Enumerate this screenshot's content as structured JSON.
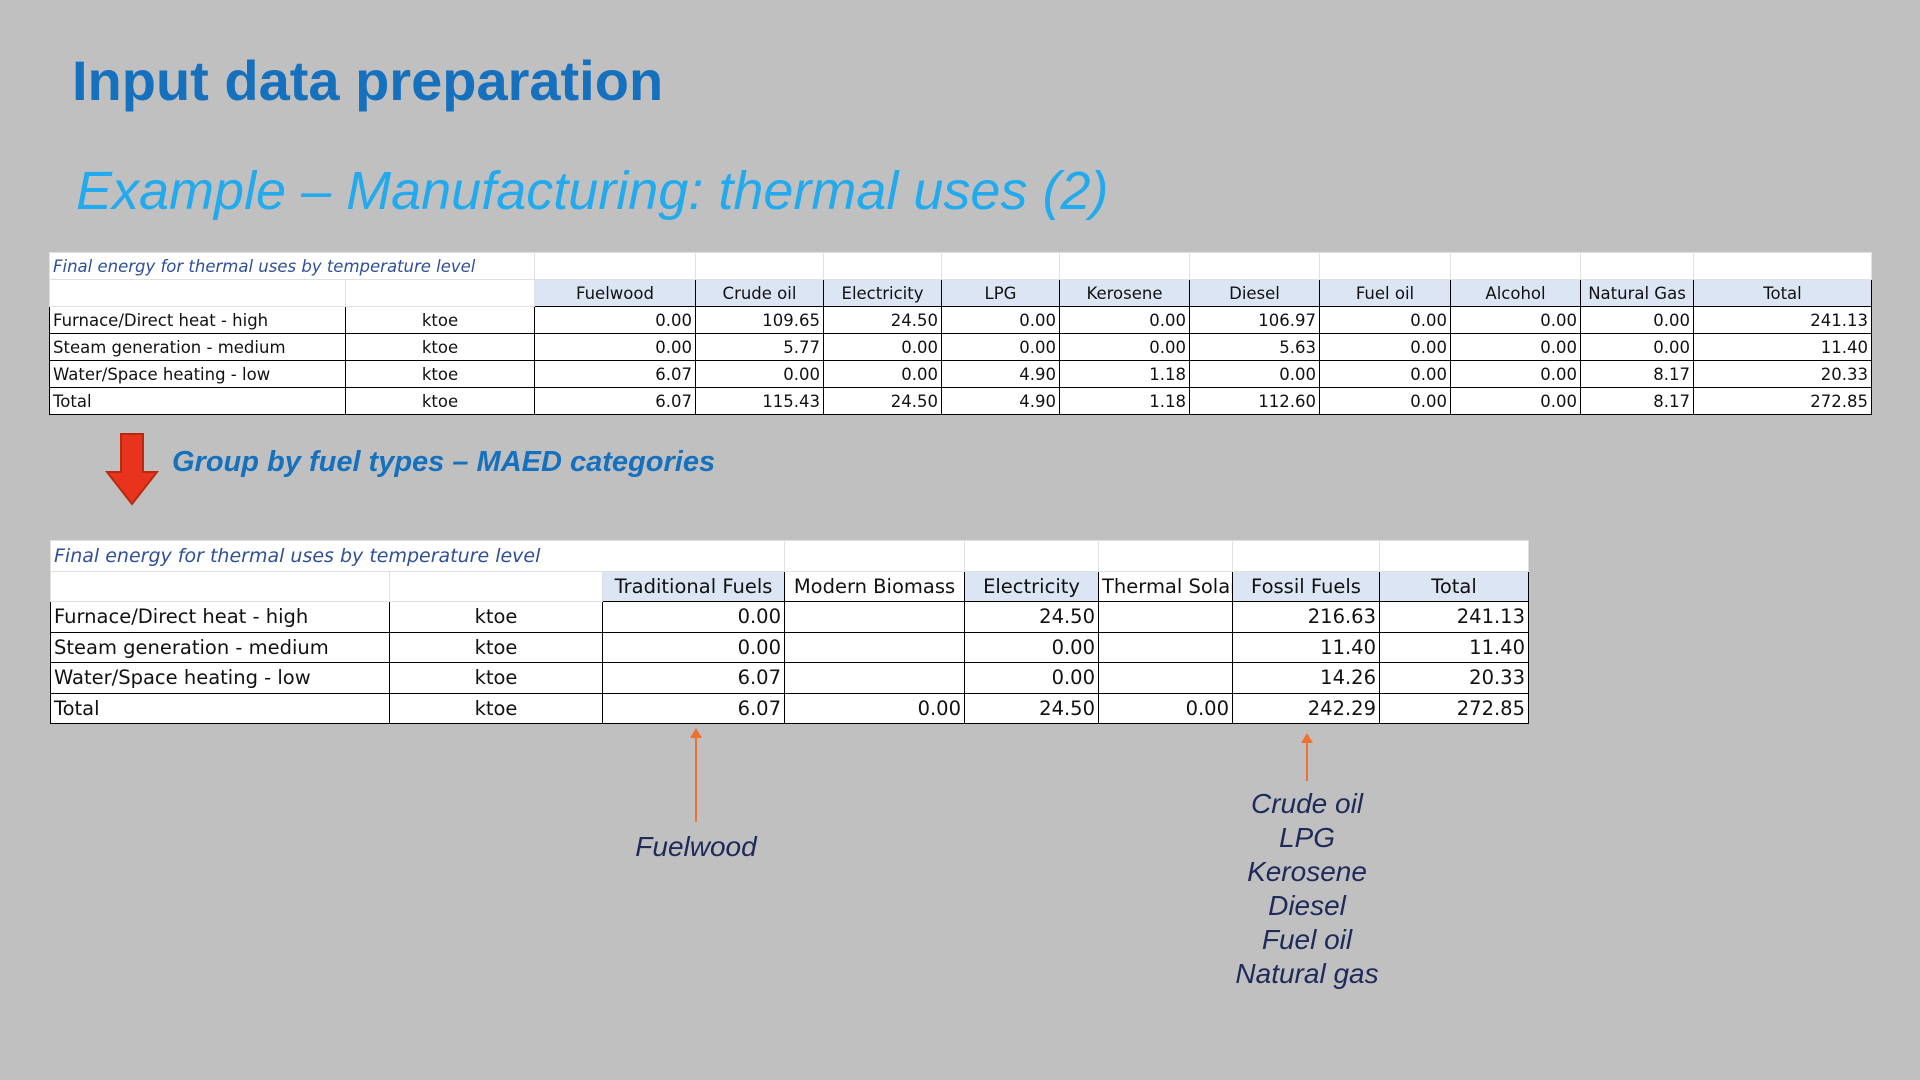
{
  "slide": {
    "title": "Input data preparation",
    "subtitle": "Example – Manufacturing: thermal uses (2)",
    "group_label": "Group by fuel types – MAED categories"
  },
  "colors": {
    "title": "#1570be",
    "subtitle": "#22aaee",
    "header_fill": "#dbe5f3",
    "arrow": "#e8341c",
    "callout_arrow": "#f07030",
    "annotation_text": "#1e2a5a"
  },
  "icons": {
    "group_arrow": "down-arrow-icon"
  },
  "table1": {
    "caption": "Final energy for thermal uses by temperature level",
    "headers": [
      "Fuelwood",
      "Crude oil",
      "Electricity",
      "LPG",
      "Kerosene",
      "Diesel",
      "Fuel oil",
      "Alcohol",
      "Natural Gas",
      "Total"
    ],
    "rows": [
      {
        "label": "Furnace/Direct heat - high",
        "unit": "ktoe",
        "values": [
          "0.00",
          "109.65",
          "24.50",
          "0.00",
          "0.00",
          "106.97",
          "0.00",
          "0.00",
          "0.00",
          "241.13"
        ]
      },
      {
        "label": "Steam generation - medium",
        "unit": "ktoe",
        "values": [
          "0.00",
          "5.77",
          "0.00",
          "0.00",
          "0.00",
          "5.63",
          "0.00",
          "0.00",
          "0.00",
          "11.40"
        ]
      },
      {
        "label": "Water/Space heating - low",
        "unit": "ktoe",
        "values": [
          "6.07",
          "0.00",
          "0.00",
          "4.90",
          "1.18",
          "0.00",
          "0.00",
          "0.00",
          "8.17",
          "20.33"
        ]
      },
      {
        "label": "Total",
        "unit": "ktoe",
        "values": [
          "6.07",
          "115.43",
          "24.50",
          "4.90",
          "1.18",
          "112.60",
          "0.00",
          "0.00",
          "8.17",
          "272.85"
        ]
      }
    ]
  },
  "table2": {
    "caption": "Final energy for thermal uses by temperature level",
    "headers": [
      "Traditional Fuels",
      "Modern Biomass",
      "Electricity",
      "Thermal Solar",
      "Fossil Fuels",
      "Total"
    ],
    "rows": [
      {
        "label": "Furnace/Direct heat - high",
        "unit": "ktoe",
        "values": [
          "0.00",
          "",
          "24.50",
          "",
          "216.63",
          "241.13"
        ]
      },
      {
        "label": "Steam generation - medium",
        "unit": "ktoe",
        "values": [
          "0.00",
          "",
          "0.00",
          "",
          "11.40",
          "11.40"
        ]
      },
      {
        "label": "Water/Space heating - low",
        "unit": "ktoe",
        "values": [
          "6.07",
          "",
          "0.00",
          "",
          "14.26",
          "20.33"
        ]
      },
      {
        "label": "Total",
        "unit": "ktoe",
        "values": [
          "6.07",
          "0.00",
          "24.50",
          "0.00",
          "242.29",
          "272.85"
        ]
      }
    ]
  },
  "annotations": {
    "traditional_fuels": [
      "Fuelwood"
    ],
    "fossil_fuels": [
      "Crude oil",
      "LPG",
      "Kerosene",
      "Diesel",
      "Fuel oil",
      "Natural gas"
    ]
  }
}
